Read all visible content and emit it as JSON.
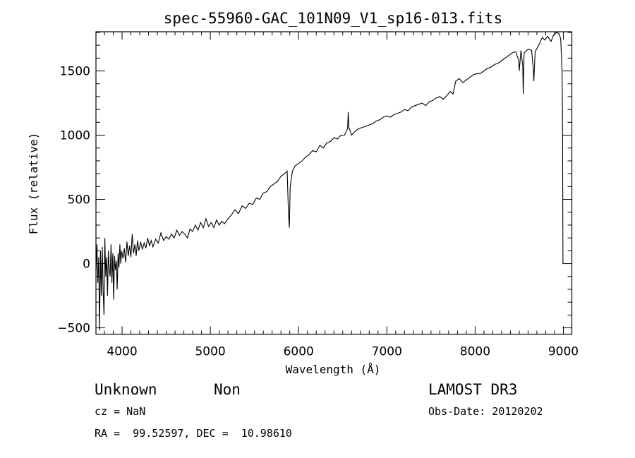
{
  "chart_data": {
    "type": "line",
    "title": "spec-55960-GAC_101N09_V1_sp16-013.fits",
    "xlabel": "Wavelength (Å)",
    "ylabel": "Flux (relative)",
    "xlim": [
      3704,
      9096
    ],
    "ylim": [
      -549,
      1805
    ],
    "x_ticks": [
      4000,
      5000,
      6000,
      7000,
      8000,
      9000
    ],
    "x_tick_labels": [
      "4000",
      "5000",
      "6000",
      "7000",
      "8000",
      "9000"
    ],
    "x_minor_step": 100,
    "y_ticks": [
      -500,
      0,
      500,
      1000,
      1500
    ],
    "y_tick_labels": [
      "−500",
      "0",
      "500",
      "1000",
      "1500"
    ],
    "y_minor_step": 100,
    "grid": false,
    "series": [
      {
        "name": "spectrum",
        "color": "#000000",
        "x": [
          3705,
          3715,
          3725,
          3735,
          3745,
          3755,
          3765,
          3775,
          3785,
          3795,
          3805,
          3815,
          3825,
          3835,
          3845,
          3855,
          3865,
          3875,
          3885,
          3895,
          3905,
          3915,
          3925,
          3935,
          3945,
          3955,
          3965,
          3975,
          3985,
          3995,
          4010,
          4025,
          4040,
          4055,
          4070,
          4085,
          4100,
          4115,
          4130,
          4145,
          4160,
          4175,
          4190,
          4210,
          4230,
          4250,
          4270,
          4290,
          4310,
          4330,
          4350,
          4380,
          4410,
          4440,
          4470,
          4500,
          4530,
          4560,
          4590,
          4620,
          4650,
          4680,
          4710,
          4740,
          4770,
          4800,
          4830,
          4860,
          4890,
          4920,
          4950,
          4980,
          5010,
          5040,
          5070,
          5100,
          5130,
          5160,
          5200,
          5240,
          5280,
          5320,
          5360,
          5400,
          5440,
          5480,
          5520,
          5560,
          5600,
          5640,
          5680,
          5720,
          5760,
          5800,
          5840,
          5870,
          5885,
          5895,
          5905,
          5930,
          5960,
          6000,
          6040,
          6080,
          6120,
          6160,
          6200,
          6240,
          6280,
          6320,
          6360,
          6400,
          6440,
          6480,
          6520,
          6555,
          6563,
          6570,
          6600,
          6640,
          6680,
          6720,
          6760,
          6800,
          6840,
          6880,
          6920,
          6960,
          7000,
          7040,
          7080,
          7120,
          7160,
          7200,
          7240,
          7280,
          7320,
          7360,
          7400,
          7440,
          7480,
          7520,
          7560,
          7600,
          7640,
          7680,
          7720,
          7750,
          7780,
          7820,
          7860,
          7900,
          7940,
          7980,
          8020,
          8060,
          8100,
          8140,
          8180,
          8220,
          8260,
          8300,
          8340,
          8380,
          8420,
          8460,
          8495,
          8500,
          8520,
          8540,
          8545,
          8555,
          8600,
          8640,
          8660,
          8665,
          8680,
          8720,
          8760,
          8790,
          8820,
          8860,
          8890,
          8920,
          8950,
          8970,
          8985,
          8990,
          8995
        ],
        "y": [
          -50,
          150,
          -150,
          50,
          -520,
          100,
          -250,
          130,
          -200,
          -400,
          200,
          -100,
          50,
          -250,
          100,
          -50,
          -100,
          150,
          -150,
          80,
          -280,
          60,
          -50,
          20,
          -200,
          80,
          -30,
          150,
          0,
          100,
          40,
          120,
          10,
          170,
          60,
          140,
          50,
          230,
          80,
          150,
          60,
          180,
          100,
          170,
          110,
          160,
          120,
          200,
          140,
          180,
          130,
          190,
          160,
          240,
          180,
          210,
          190,
          230,
          200,
          260,
          220,
          250,
          230,
          200,
          270,
          250,
          300,
          260,
          320,
          280,
          350,
          290,
          320,
          280,
          340,
          300,
          330,
          310,
          350,
          380,
          420,
          390,
          450,
          430,
          470,
          460,
          510,
          500,
          550,
          560,
          600,
          620,
          640,
          680,
          700,
          720,
          400,
          280,
          600,
          720,
          760,
          780,
          800,
          830,
          850,
          880,
          870,
          920,
          900,
          940,
          950,
          980,
          970,
          1000,
          1000,
          1050,
          1180,
          1060,
          1000,
          1030,
          1050,
          1060,
          1070,
          1080,
          1090,
          1110,
          1120,
          1140,
          1150,
          1140,
          1160,
          1170,
          1180,
          1200,
          1190,
          1220,
          1230,
          1240,
          1250,
          1230,
          1260,
          1270,
          1290,
          1300,
          1280,
          1310,
          1340,
          1320,
          1420,
          1440,
          1410,
          1430,
          1450,
          1470,
          1480,
          1480,
          1500,
          1520,
          1530,
          1550,
          1560,
          1580,
          1600,
          1620,
          1640,
          1650,
          1580,
          1500,
          1660,
          1540,
          1320,
          1640,
          1670,
          1660,
          1500,
          1420,
          1650,
          1700,
          1760,
          1740,
          1770,
          1730,
          1780,
          1800,
          1790,
          1750,
          1500,
          1200,
          0
        ]
      }
    ]
  },
  "footer": {
    "object_class": "Unknown",
    "subclass": "Non",
    "survey": "LAMOST DR3",
    "redshift": "cz = NaN",
    "obs_date": "Obs-Date: 20120202",
    "coords": "RA =  99.52597, DEC =  10.98610"
  }
}
